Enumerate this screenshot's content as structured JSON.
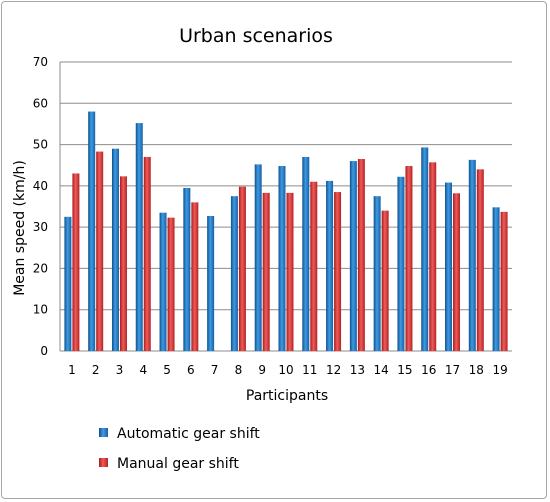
{
  "chart_data": {
    "type": "bar",
    "title": "Urban scenarios",
    "xlabel": "Participants",
    "ylabel": "Mean speed (km/h)",
    "ylim": [
      0,
      70
    ],
    "yticks": [
      0,
      10,
      20,
      30,
      40,
      50,
      60,
      70
    ],
    "grid": true,
    "legend_position": "bottom-left",
    "categories": [
      "1",
      "2",
      "3",
      "4",
      "5",
      "6",
      "7",
      "8",
      "9",
      "10",
      "11",
      "12",
      "13",
      "14",
      "15",
      "16",
      "17",
      "18",
      "19"
    ],
    "series": [
      {
        "name": "Automatic gear shift",
        "color": "#2a7fc6",
        "values": [
          32.5,
          58.0,
          49.0,
          55.2,
          33.5,
          39.5,
          32.7,
          37.5,
          45.2,
          44.8,
          47.0,
          41.2,
          46.0,
          37.5,
          42.2,
          49.3,
          40.8,
          46.3,
          34.8
        ]
      },
      {
        "name": "Manual gear shift",
        "color": "#e23b3b",
        "values": [
          43.0,
          48.3,
          42.3,
          47.0,
          32.3,
          36.0,
          null,
          39.8,
          38.3,
          38.3,
          41.0,
          38.5,
          46.5,
          34.0,
          44.8,
          45.7,
          38.2,
          44.0,
          33.7
        ]
      }
    ]
  }
}
